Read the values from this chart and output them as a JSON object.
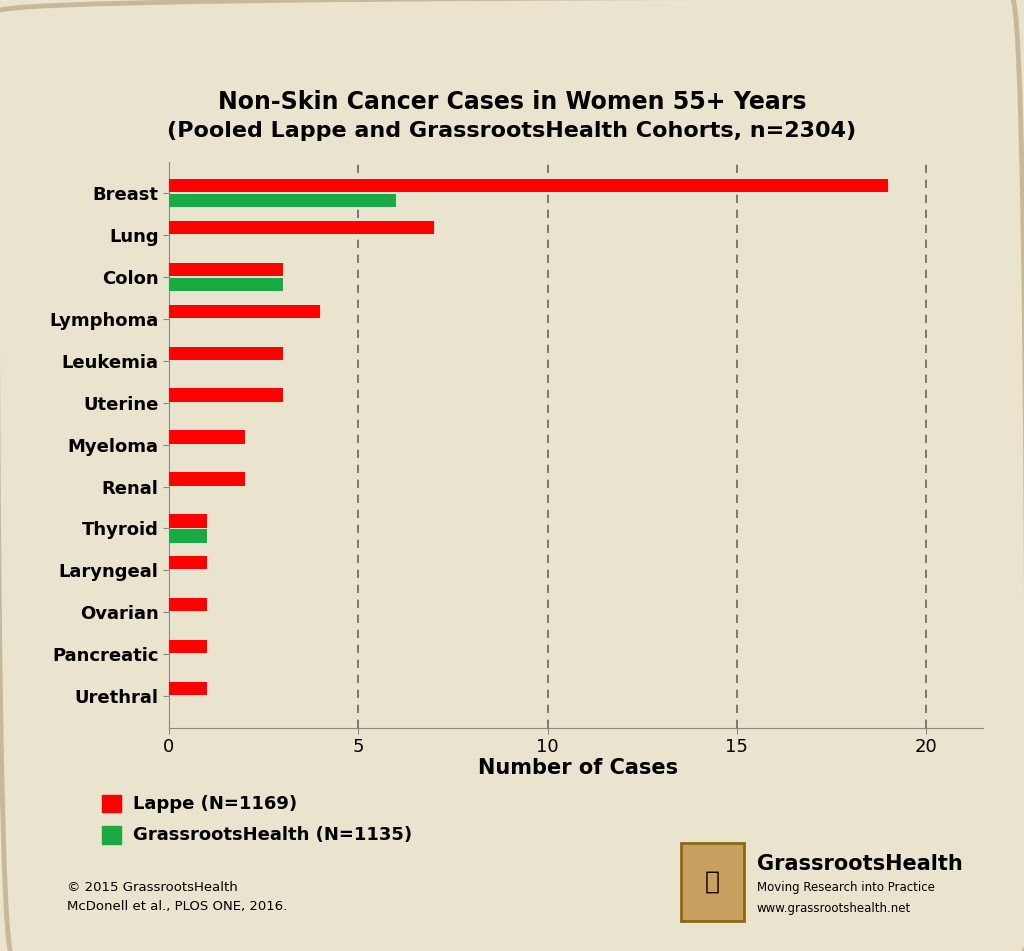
{
  "title_line1": "Non-Skin Cancer Cases in Women 55+ Years",
  "title_line2": "(Pooled Lappe and GrassrootsHealth Cohorts, n=2304)",
  "categories": [
    "Breast",
    "Lung",
    "Colon",
    "Lymphoma",
    "Leukemia",
    "Uterine",
    "Myeloma",
    "Renal",
    "Thyroid",
    "Laryngeal",
    "Ovarian",
    "Pancreatic",
    "Urethral"
  ],
  "lappe_values": [
    19.0,
    7.0,
    3.0,
    4.0,
    3.0,
    3.0,
    2.0,
    2.0,
    1.0,
    1.0,
    1.0,
    1.0,
    1.0
  ],
  "grh_values": [
    6.0,
    0,
    3.0,
    0,
    0,
    0,
    0,
    0,
    1.0,
    0,
    0,
    0,
    0
  ],
  "lappe_color": "#FF0000",
  "grh_color": "#1AAA44",
  "background_color": "#EAE4CE",
  "xlabel": "Number of Cases",
  "xlim": [
    0,
    21.5
  ],
  "xticks": [
    0,
    5,
    10,
    15,
    20
  ],
  "legend_lappe": "Lappe (N=1169)",
  "legend_grh": "GrassrootsHealth (N=1135)",
  "copyright_text": "© 2015 GrassrootsHealth\nMcDonell et al., PLOS ONE, 2016.",
  "website_text": "www.grassrootshealth.net",
  "grh_brand": "GrassrootsHealth",
  "grh_tagline": "Moving Research into Practice",
  "dashed_color": "#666666",
  "border_color": "#C8B89A",
  "spine_color": "#888888"
}
